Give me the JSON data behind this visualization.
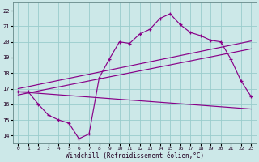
{
  "xlabel": "Windchill (Refroidissement éolien,°C)",
  "bg_color": "#cce8e8",
  "line_color": "#880088",
  "grid_color": "#99cccc",
  "x_ticks": [
    0,
    1,
    2,
    3,
    4,
    5,
    6,
    7,
    8,
    9,
    10,
    11,
    12,
    13,
    14,
    15,
    16,
    17,
    18,
    19,
    20,
    21,
    22,
    23
  ],
  "y_ticks": [
    14,
    15,
    16,
    17,
    18,
    19,
    20,
    21,
    22
  ],
  "ylim": [
    13.5,
    22.5
  ],
  "xlim": [
    -0.5,
    23.5
  ],
  "main_x": [
    0,
    1,
    2,
    3,
    4,
    5,
    6,
    7,
    8,
    9,
    10,
    11,
    12,
    13,
    14,
    15,
    16,
    17,
    18,
    19,
    20,
    21,
    22,
    23
  ],
  "main_y": [
    16.8,
    16.8,
    16.0,
    15.3,
    15.0,
    14.8,
    13.8,
    14.1,
    17.7,
    18.9,
    20.0,
    19.9,
    20.5,
    20.8,
    21.5,
    21.8,
    21.1,
    20.6,
    20.4,
    20.1,
    20.0,
    18.9,
    17.5,
    16.5
  ],
  "line1_x": [
    0,
    23
  ],
  "line1_y": [
    17.0,
    20.05
  ],
  "line2_x": [
    0,
    23
  ],
  "line2_y": [
    16.6,
    19.55
  ],
  "line3_x": [
    0,
    23
  ],
  "line3_y": [
    16.8,
    15.7
  ]
}
